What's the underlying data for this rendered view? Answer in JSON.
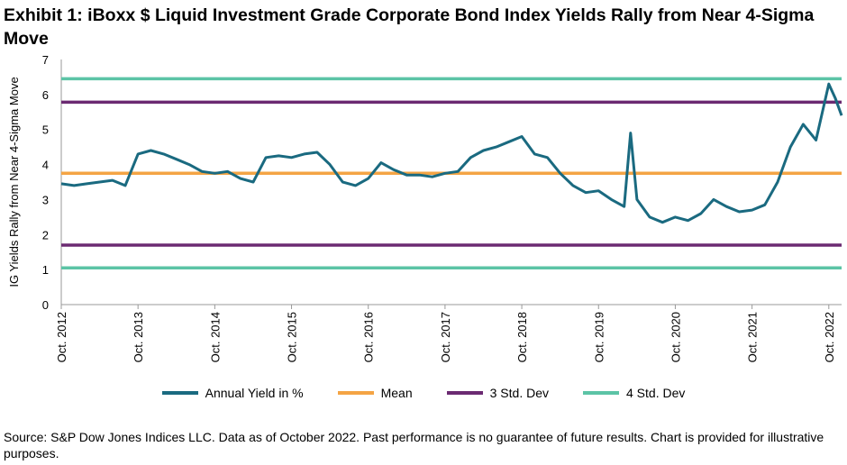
{
  "title": "Exhibit 1: iBoxx $ Liquid Investment Grade Corporate Bond Index Yields Rally from Near 4-Sigma Move",
  "source": "Source: S&P Dow Jones Indices LLC. Data as of October 2022. Past performance is no guarantee of future results. Chart is provided for illustrative purposes.",
  "colors": {
    "yield": "#1a6a80",
    "mean": "#f4a444",
    "std3": "#6b2a72",
    "std4": "#5cc4a6"
  },
  "chart_data": {
    "type": "line",
    "ylabel": "IG Yields Rally from Near 4-Sigma Move",
    "ylim": [
      0,
      7
    ],
    "yticks": [
      "0",
      "1",
      "2",
      "3",
      "4",
      "5",
      "6",
      "7"
    ],
    "xlim": [
      "2012-10",
      "2022-12"
    ],
    "xticks": [
      "Oct. 2012",
      "Oct. 2013",
      "Oct. 2014",
      "Oct. 2015",
      "Oct. 2016",
      "Oct. 2017",
      "Oct. 2018",
      "Oct. 2019",
      "Oct. 2020",
      "Oct. 2021",
      "Oct. 2022"
    ],
    "grid": false,
    "legend_position": "bottom",
    "series": [
      {
        "name": "Annual Yield in %",
        "x": [
          "2012-10",
          "2012-12",
          "2013-02",
          "2013-04",
          "2013-06",
          "2013-08",
          "2013-10",
          "2013-12",
          "2014-02",
          "2014-04",
          "2014-06",
          "2014-08",
          "2014-10",
          "2014-12",
          "2015-02",
          "2015-04",
          "2015-06",
          "2015-08",
          "2015-10",
          "2015-12",
          "2016-02",
          "2016-04",
          "2016-06",
          "2016-08",
          "2016-10",
          "2016-12",
          "2017-02",
          "2017-04",
          "2017-06",
          "2017-08",
          "2017-10",
          "2017-12",
          "2018-02",
          "2018-04",
          "2018-06",
          "2018-08",
          "2018-10",
          "2018-12",
          "2019-02",
          "2019-04",
          "2019-06",
          "2019-08",
          "2019-10",
          "2019-12",
          "2020-02",
          "2020-03",
          "2020-04",
          "2020-06",
          "2020-08",
          "2020-10",
          "2020-12",
          "2021-02",
          "2021-04",
          "2021-06",
          "2021-08",
          "2021-10",
          "2021-12",
          "2022-02",
          "2022-04",
          "2022-06",
          "2022-08",
          "2022-10",
          "2022-11",
          "2022-12"
        ],
        "y": [
          3.45,
          3.4,
          3.45,
          3.5,
          3.55,
          3.4,
          4.3,
          4.4,
          4.3,
          4.15,
          4.0,
          3.8,
          3.75,
          3.8,
          3.6,
          3.5,
          4.2,
          4.25,
          4.2,
          4.3,
          4.35,
          4.0,
          3.5,
          3.4,
          3.6,
          4.05,
          3.85,
          3.7,
          3.7,
          3.65,
          3.75,
          3.8,
          4.2,
          4.4,
          4.5,
          4.65,
          4.8,
          4.3,
          4.2,
          3.75,
          3.4,
          3.2,
          3.25,
          3.0,
          2.8,
          4.9,
          3.0,
          2.5,
          2.35,
          2.5,
          2.4,
          2.6,
          3.0,
          2.8,
          2.65,
          2.7,
          2.85,
          3.5,
          4.5,
          5.15,
          4.7,
          6.3,
          5.9,
          5.4
        ]
      },
      {
        "name": "Mean",
        "value": 3.75
      },
      {
        "name": "3 Std. Dev",
        "values": [
          5.78,
          1.7
        ]
      },
      {
        "name": "4 Std. Dev",
        "values": [
          6.45,
          1.05
        ]
      }
    ]
  }
}
